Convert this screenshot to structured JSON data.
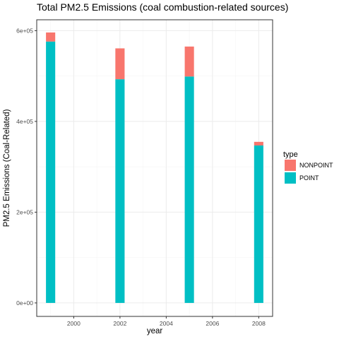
{
  "chart_data": {
    "type": "bar",
    "stacked": true,
    "title": "Total PM2.5 Emissions (coal combustion-related sources)",
    "xlabel": "year",
    "ylabel": "PM2.5 Emissions (Coal-Related)",
    "x": [
      1999,
      2002,
      2005,
      2008
    ],
    "xlim": [
      1998.4,
      2008.6
    ],
    "ylim": [
      -29700,
      624000
    ],
    "x_ticks": [
      2000,
      2002,
      2004,
      2006,
      2008
    ],
    "x_tick_labels": [
      "2000",
      "2002",
      "2004",
      "2006",
      "2008"
    ],
    "y_ticks": [
      0,
      200000,
      400000,
      600000
    ],
    "y_tick_labels": [
      "0e+00",
      "2e+05",
      "4e+05",
      "6e+05"
    ],
    "bar_width_years": 0.4,
    "series": [
      {
        "name": "POINT",
        "color": "#00BFC4",
        "values": [
          576000,
          493000,
          499000,
          347000
        ]
      },
      {
        "name": "NONPOINT",
        "color": "#F8766D",
        "values": [
          20000,
          68000,
          66000,
          8000
        ]
      }
    ],
    "legend": {
      "title": "type",
      "position": "right",
      "entries": [
        {
          "label": "NONPOINT",
          "color": "#F8766D"
        },
        {
          "label": "POINT",
          "color": "#00BFC4"
        }
      ]
    },
    "grid": true,
    "theme": {
      "panel_border": "#333333",
      "grid_major": "#ebebeb",
      "grid_minor": "#f5f5f5"
    }
  }
}
